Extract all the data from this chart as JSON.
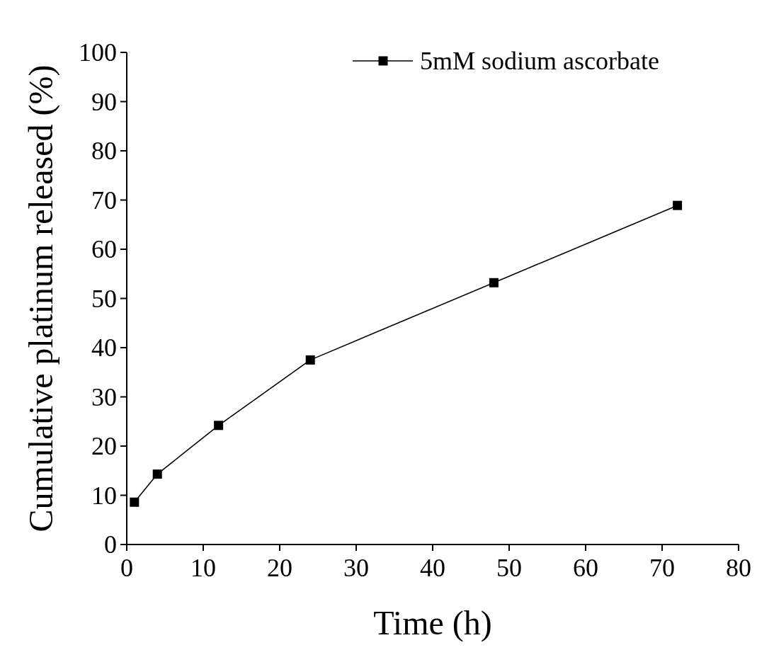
{
  "chart_data": {
    "type": "line",
    "xlabel": "Time (h)",
    "ylabel": "Cumulative platinum released (%)",
    "x": [
      1,
      4,
      12,
      24,
      48,
      72
    ],
    "series": [
      {
        "name": "5mM sodium ascorbate",
        "color": "#000000",
        "values": [
          8.6,
          14.3,
          24.2,
          37.5,
          53.2,
          68.9
        ]
      }
    ],
    "xlim": [
      0,
      80
    ],
    "xticks": [
      0,
      10,
      20,
      30,
      40,
      50,
      60,
      70,
      80
    ],
    "ylim": [
      0,
      100
    ],
    "yticks": [
      0,
      10,
      20,
      30,
      40,
      50,
      60,
      70,
      80,
      90,
      100
    ],
    "marker": "square",
    "line_style": "solid",
    "legend": "top right",
    "grid": false
  }
}
